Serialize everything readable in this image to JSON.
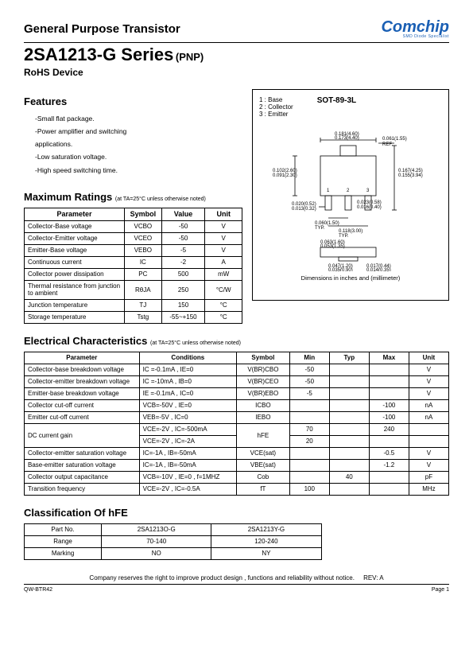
{
  "header": {
    "doc_title": "General Purpose Transistor",
    "series": "2SA1213-G Series",
    "series_type": "(PNP)",
    "rohs": "RoHS Device",
    "logo_main": "Comchip",
    "logo_sub": "SMD Diode Specialist"
  },
  "features": {
    "heading": "Features",
    "items": [
      "-Small flat package.",
      "-Power amplifier and switching applications.",
      "-Low saturation voltage.",
      "-High speed switching time."
    ]
  },
  "package": {
    "pins": [
      "1 : Base",
      "2 : Collector",
      "3 : Emitter"
    ],
    "type": "SOT-89-3L",
    "dim_note": "Dimensions in inches and (millimeter)",
    "dims": {
      "d1": "0.181(4.60)",
      "d1b": "0.173(4.40)",
      "d2": "0.061(1.55)",
      "d2b": "REF.",
      "d3": "0.167(4.25)",
      "d3b": "0.155(3.94)",
      "d4": "0.102(2.60)",
      "d4b": "0.091(2.30)",
      "d5": "0.020(0.52)",
      "d5b": "0.013(0.32)",
      "d6": "0.023(0.58)",
      "d6b": "0.016(0.40)",
      "d7": "0.060(1.50)",
      "d7b": "TYP.",
      "d8": "0.118(3.00)",
      "d8b": "TYP.",
      "d9": "0.063(1.60)",
      "d9b": "0.053(1.35)",
      "d10": "0.047(1.20)",
      "d10b": "0.035(0.90)",
      "d11": "0.017(0.44)",
      "d11b": "0.014(0.35)"
    }
  },
  "max_ratings": {
    "heading": "Maximum Ratings",
    "note": "(at TA=25°C unless otherwise noted)",
    "cols": [
      "Parameter",
      "Symbol",
      "Value",
      "Unit"
    ],
    "rows": [
      [
        "Collector-Base voltage",
        "VCBO",
        "-50",
        "V"
      ],
      [
        "Collector-Emitter voltage",
        "VCEO",
        "-50",
        "V"
      ],
      [
        "Emitter-Base voltage",
        "VEBO",
        "-5",
        "V"
      ],
      [
        "Continuous current",
        "IC",
        "-2",
        "A"
      ],
      [
        "Collector power dissipation",
        "PC",
        "500",
        "mW"
      ],
      [
        "Thermal resistance from junction to ambient",
        "RθJA",
        "250",
        "°C/W"
      ],
      [
        "Junction temperature",
        "TJ",
        "150",
        "°C"
      ],
      [
        "Storage temperature",
        "Tstg",
        "-55~+150",
        "°C"
      ]
    ]
  },
  "elec": {
    "heading": "Electrical Characteristics",
    "note": "(at TA=25°C unless otherwise noted)",
    "cols": [
      "Parameter",
      "Conditions",
      "Symbol",
      "Min",
      "Typ",
      "Max",
      "Unit"
    ],
    "rows": [
      [
        "Collector-base breakdown voltage",
        "IC =-0.1mA , IE=0",
        "V(BR)CBO",
        "-50",
        "",
        "",
        "V"
      ],
      [
        "Collector-emitter breakdown voltage",
        "IC =-10mA , IB=0",
        "V(BR)CEO",
        "-50",
        "",
        "",
        "V"
      ],
      [
        "Emitter-base breakdown voltage",
        "IE =-0.1mA , IC=0",
        "V(BR)EBO",
        "-5",
        "",
        "",
        "V"
      ],
      [
        "Collector cut-off current",
        "VCB=-50V , IE=0",
        "ICBO",
        "",
        "",
        "-100",
        "nA"
      ],
      [
        "Emitter cut-off current",
        "VEB=-5V , IC=0",
        "IEBO",
        "",
        "",
        "-100",
        "nA"
      ],
      [
        "DC current gain",
        "VCE=-2V , IC=-500mA",
        "hFE",
        "70",
        "",
        "240",
        ""
      ],
      [
        "",
        "VCE=-2V , IC=-2A",
        "",
        "20",
        "",
        "",
        ""
      ],
      [
        "Collector-emitter saturation voltage",
        "IC=-1A , IB=-50mA",
        "VCE(sat)",
        "",
        "",
        "-0.5",
        "V"
      ],
      [
        "Base-emitter saturation voltage",
        "IC=-1A , IB=-50mA",
        "VBE(sat)",
        "",
        "",
        "-1.2",
        "V"
      ],
      [
        "Collector output capacitance",
        "VCB=-10V , IE=0 , f=1MHZ",
        "Cob",
        "",
        "40",
        "",
        "pF"
      ],
      [
        "Transition frequency",
        "VCE=-2V , IC=-0.5A",
        "fT",
        "100",
        "",
        "",
        "MHz"
      ]
    ]
  },
  "classification": {
    "heading": "Classification Of hFE",
    "rows": [
      [
        "Part No.",
        "2SA1213O-G",
        "2SA1213Y-G"
      ],
      [
        "Range",
        "70-140",
        "120-240"
      ],
      [
        "Marking",
        "NO",
        "NY"
      ]
    ]
  },
  "footer": {
    "disclaimer": "Company reserves the right to improve product design , functions and reliability without notice.",
    "rev": "REV: A",
    "code": "QW-BTR42",
    "page": "Page 1"
  }
}
